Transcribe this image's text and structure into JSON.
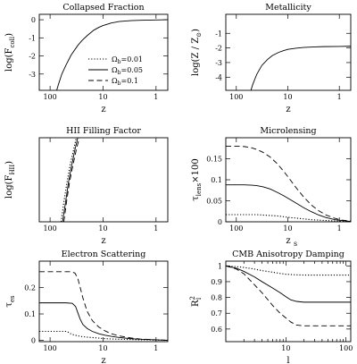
{
  "chart_data": [
    {
      "type": "line",
      "title": "Collapsed Fraction",
      "xlabel": "z",
      "ylabel": "log(F",
      "ylabel_sub": "coll",
      "ylabel_close": ")",
      "x_scale": "log-reversed",
      "xlim": [
        160,
        0.6
      ],
      "ylim": [
        -3.9,
        0.3
      ],
      "x_ticks": [
        {
          "v": 100,
          "label": "100"
        },
        {
          "v": 10,
          "label": "10"
        },
        {
          "v": 1,
          "label": "1"
        }
      ],
      "y_ticks": [
        {
          "v": 0,
          "label": "0"
        },
        {
          "v": -1,
          "label": "-1"
        },
        {
          "v": -2,
          "label": "-2"
        },
        {
          "v": -3,
          "label": "-3"
        }
      ],
      "legend_prefix": "Ω",
      "legend_sub": "b",
      "legend": [
        {
          "label": "=0.01",
          "style": "dotted"
        },
        {
          "label": "=0.05",
          "style": "solid"
        },
        {
          "label": "=0.1",
          "style": "dashed"
        }
      ],
      "series": [
        {
          "style": "solid",
          "x": [
            75,
            70,
            60,
            50,
            40,
            30,
            25,
            20,
            15,
            12,
            10,
            7,
            5,
            3,
            2,
            1,
            0.6
          ],
          "y": [
            -3.9,
            -3.6,
            -3.0,
            -2.5,
            -1.95,
            -1.42,
            -1.15,
            -0.88,
            -0.58,
            -0.42,
            -0.32,
            -0.18,
            -0.1,
            -0.05,
            -0.03,
            -0.01,
            0
          ]
        }
      ]
    },
    {
      "type": "line",
      "title": "Metallicity",
      "xlabel": "z",
      "ylabel": "log(Z / Z",
      "ylabel_sub": "⊙",
      "ylabel_close": ")",
      "x_scale": "log-reversed",
      "xlim": [
        160,
        0.6
      ],
      "ylim": [
        -4.9,
        0.3
      ],
      "x_ticks": [
        {
          "v": 100,
          "label": "100"
        },
        {
          "v": 10,
          "label": "10"
        },
        {
          "v": 1,
          "label": "1"
        }
      ],
      "y_ticks": [
        {
          "v": -1,
          "label": "-1"
        },
        {
          "v": -2,
          "label": "-2"
        },
        {
          "v": -3,
          "label": "-3"
        },
        {
          "v": -4,
          "label": "-4"
        }
      ],
      "series": [
        {
          "style": "solid",
          "x": [
            52,
            48,
            40,
            32,
            25,
            20,
            15,
            12,
            10,
            7,
            5,
            3,
            2,
            1,
            0.6
          ],
          "y": [
            -4.9,
            -4.5,
            -3.8,
            -3.2,
            -2.8,
            -2.52,
            -2.3,
            -2.18,
            -2.1,
            -2.02,
            -1.97,
            -1.93,
            -1.91,
            -1.9,
            -1.88
          ]
        }
      ]
    },
    {
      "type": "line",
      "title": "HII Filling Factor",
      "xlabel": "z",
      "ylabel": "log(F",
      "ylabel_sub": "HII",
      "ylabel_close": ")",
      "x_scale": "log-reversed",
      "xlim": [
        160,
        0.6
      ],
      "ylim": [
        -3.5,
        0.35
      ],
      "x_ticks": [
        {
          "v": 100,
          "label": "100"
        },
        {
          "v": 10,
          "label": "10"
        },
        {
          "v": 1,
          "label": "1"
        }
      ],
      "y_ticks": [],
      "series": [
        {
          "style": "dotted",
          "x": [
            62,
            55,
            48,
            42,
            36,
            32
          ],
          "y": [
            -3.5,
            -2.6,
            -1.7,
            -0.9,
            -0.2,
            0.35
          ]
        },
        {
          "style": "solid",
          "x": [
            58,
            51,
            45,
            39,
            34,
            30
          ],
          "y": [
            -3.5,
            -2.6,
            -1.7,
            -0.9,
            -0.2,
            0.35
          ]
        },
        {
          "style": "dashed",
          "x": [
            55,
            49,
            43,
            37,
            32,
            28
          ],
          "y": [
            -3.5,
            -2.6,
            -1.7,
            -0.9,
            -0.2,
            0.35
          ]
        }
      ]
    },
    {
      "type": "line",
      "title": "Microlensing",
      "xlabel": "z",
      "xlabel_sub": "s",
      "ylabel": "τ",
      "ylabel_sub": "lens",
      "ylabel_close": "×100",
      "x_scale": "log-reversed",
      "xlim": [
        160,
        0.6
      ],
      "ylim": [
        0,
        0.2
      ],
      "x_ticks": [
        {
          "v": 100,
          "label": "100"
        },
        {
          "v": 10,
          "label": "10"
        },
        {
          "v": 1,
          "label": "1"
        }
      ],
      "y_ticks": [
        {
          "v": 0,
          "label": "0"
        },
        {
          "v": 0.05,
          "label": "0.05"
        },
        {
          "v": 0.1,
          "label": "0.1"
        },
        {
          "v": 0.15,
          "label": "0.15"
        }
      ],
      "series": [
        {
          "style": "dashed",
          "x": [
            160,
            100,
            70,
            50,
            40,
            30,
            22,
            16,
            12,
            9,
            7,
            5,
            3.5,
            2.5,
            1.8,
            1.2,
            0.9,
            0.6
          ],
          "y": [
            0.18,
            0.18,
            0.179,
            0.176,
            0.172,
            0.165,
            0.154,
            0.138,
            0.12,
            0.1,
            0.082,
            0.06,
            0.04,
            0.026,
            0.016,
            0.008,
            0.004,
            0.002
          ]
        },
        {
          "style": "solid",
          "x": [
            160,
            100,
            70,
            50,
            40,
            30,
            22,
            16,
            12,
            9,
            7,
            5,
            3.5,
            2.5,
            1.8,
            1.2,
            0.9,
            0.6
          ],
          "y": [
            0.088,
            0.088,
            0.088,
            0.087,
            0.086,
            0.083,
            0.078,
            0.07,
            0.062,
            0.053,
            0.045,
            0.034,
            0.024,
            0.016,
            0.01,
            0.005,
            0.003,
            0.001
          ]
        },
        {
          "style": "dotted",
          "x": [
            160,
            100,
            70,
            50,
            40,
            30,
            22,
            16,
            12,
            9,
            7,
            5,
            3.5,
            2.5,
            1.8,
            1.2,
            0.9,
            0.6
          ],
          "y": [
            0.017,
            0.017,
            0.017,
            0.017,
            0.017,
            0.016,
            0.015,
            0.014,
            0.012,
            0.01,
            0.009,
            0.007,
            0.005,
            0.004,
            0.003,
            0.002,
            0.001,
            0.0005
          ]
        }
      ]
    },
    {
      "type": "line",
      "title": "Electron Scattering",
      "xlabel": "z",
      "ylabel": "τ",
      "ylabel_sub": "es",
      "ylabel_close": "",
      "x_scale": "log-reversed",
      "xlim": [
        160,
        0.6
      ],
      "ylim": [
        -0.005,
        0.3
      ],
      "x_ticks": [
        {
          "v": 100,
          "label": "100"
        },
        {
          "v": 10,
          "label": "10"
        },
        {
          "v": 1,
          "label": "1"
        }
      ],
      "y_ticks": [
        {
          "v": 0,
          "label": "0"
        },
        {
          "v": 0.1,
          "label": "0.1"
        },
        {
          "v": 0.2,
          "label": "0.2"
        }
      ],
      "series": [
        {
          "style": "dashed",
          "x": [
            160,
            70,
            40,
            34,
            30,
            27,
            24,
            20,
            16,
            12,
            9,
            7,
            5,
            3,
            2,
            1,
            0.6
          ],
          "y": [
            0.26,
            0.26,
            0.26,
            0.255,
            0.235,
            0.2,
            0.16,
            0.11,
            0.075,
            0.05,
            0.035,
            0.025,
            0.017,
            0.009,
            0.005,
            0.002,
            0.0
          ]
        },
        {
          "style": "solid",
          "x": [
            160,
            80,
            50,
            38,
            33,
            30,
            27,
            24,
            20,
            16,
            12,
            9,
            7,
            5,
            3,
            2,
            1,
            0.6
          ],
          "y": [
            0.142,
            0.142,
            0.142,
            0.14,
            0.128,
            0.105,
            0.08,
            0.06,
            0.045,
            0.034,
            0.025,
            0.019,
            0.015,
            0.011,
            0.006,
            0.004,
            0.002,
            0.0
          ]
        },
        {
          "style": "dotted",
          "x": [
            160,
            70,
            50,
            45,
            40,
            35,
            30,
            25,
            20,
            15,
            10,
            7,
            5,
            3,
            2,
            1,
            0.6
          ],
          "y": [
            0.034,
            0.034,
            0.034,
            0.03,
            0.024,
            0.02,
            0.017,
            0.014,
            0.012,
            0.01,
            0.007,
            0.005,
            0.004,
            0.003,
            0.002,
            0.001,
            0.0
          ]
        }
      ]
    },
    {
      "type": "line",
      "title": "CMB Anisotropy Damping",
      "xlabel": "l",
      "ylabel": "R",
      "ylabel_sup": "2",
      "ylabel_sub": "l",
      "x_scale": "log",
      "xlim": [
        1,
        120
      ],
      "ylim": [
        0.52,
        1.03
      ],
      "x_ticks": [
        {
          "v": 10,
          "label": "10"
        },
        {
          "v": 100,
          "label": "100"
        }
      ],
      "x_minor": [
        2,
        3,
        4,
        5,
        6,
        7,
        8,
        9,
        20,
        30,
        40,
        50,
        60,
        70,
        80,
        90
      ],
      "y_ticks": [
        {
          "v": 1,
          "label": "1"
        },
        {
          "v": 0.9,
          "label": "0.9"
        },
        {
          "v": 0.8,
          "label": "0.8"
        },
        {
          "v": 0.7,
          "label": "0.7"
        },
        {
          "v": 0.6,
          "label": "0.6"
        }
      ],
      "series": [
        {
          "style": "dotted",
          "x": [
            1,
            1.5,
            2,
            3,
            4,
            6,
            8,
            10,
            15,
            20,
            30,
            50,
            80,
            120
          ],
          "y": [
            1.0,
            0.995,
            0.99,
            0.98,
            0.97,
            0.96,
            0.952,
            0.947,
            0.943,
            0.942,
            0.942,
            0.942,
            0.942,
            0.942
          ]
        },
        {
          "style": "solid",
          "x": [
            1,
            1.5,
            2,
            3,
            4,
            6,
            8,
            10,
            12,
            15,
            20,
            30,
            50,
            80,
            120
          ],
          "y": [
            1.0,
            0.985,
            0.965,
            0.93,
            0.9,
            0.86,
            0.83,
            0.805,
            0.785,
            0.775,
            0.77,
            0.77,
            0.77,
            0.77,
            0.77
          ]
        },
        {
          "style": "dashed",
          "x": [
            1,
            1.5,
            2,
            3,
            4,
            6,
            8,
            10,
            12,
            15,
            20,
            30,
            50,
            80,
            120
          ],
          "y": [
            1.0,
            0.98,
            0.95,
            0.88,
            0.83,
            0.75,
            0.7,
            0.67,
            0.645,
            0.625,
            0.62,
            0.62,
            0.62,
            0.62,
            0.62
          ]
        }
      ]
    }
  ]
}
